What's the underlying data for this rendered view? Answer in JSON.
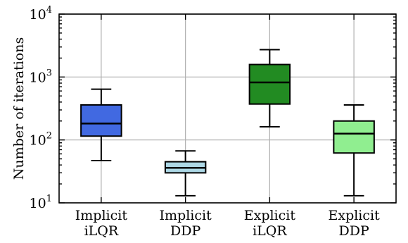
{
  "chart_data": {
    "type": "box",
    "ylabel": "Number of iterations",
    "yscale": "log",
    "ylim": [
      10,
      10000
    ],
    "yticks": [
      {
        "value": 10,
        "base": "10",
        "exp": "1"
      },
      {
        "value": 100,
        "base": "10",
        "exp": "2"
      },
      {
        "value": 1000,
        "base": "10",
        "exp": "3"
      },
      {
        "value": 10000,
        "base": "10",
        "exp": "4"
      }
    ],
    "grid": true,
    "boxes": [
      {
        "label": [
          "Implicit",
          "iLQR"
        ],
        "whislo": 47,
        "q1": 115,
        "med": 182,
        "q3": 360,
        "whishi": 640,
        "color": "#4169e1"
      },
      {
        "label": [
          "Implicit",
          "DDP"
        ],
        "whislo": 13,
        "q1": 30,
        "med": 36,
        "q3": 45,
        "whishi": 67,
        "color": "#add8e6"
      },
      {
        "label": [
          "Explicit",
          "iLQR"
        ],
        "whislo": 162,
        "q1": 372,
        "med": 820,
        "q3": 1580,
        "whishi": 2720,
        "color": "#228b22"
      },
      {
        "label": [
          "Explicit",
          "DDP"
        ],
        "whislo": 13,
        "q1": 62,
        "med": 126,
        "q3": 200,
        "whishi": 360,
        "color": "#90ee90"
      }
    ]
  }
}
